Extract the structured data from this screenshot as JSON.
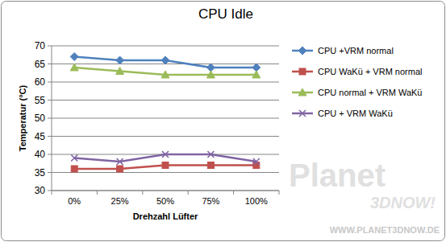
{
  "chart_data": {
    "type": "line",
    "title": "CPU Idle",
    "x_label": "Drehzahl Lüfter",
    "y_label": "Temperatur (°C)",
    "categories": [
      "0%",
      "25%",
      "50%",
      "75%",
      "100%"
    ],
    "series": [
      {
        "name": "CPU +VRM normal",
        "color": "#4f81bd",
        "marker": "diamond",
        "values": [
          67,
          66,
          66,
          64,
          64
        ]
      },
      {
        "name": "CPU WaKü + VRM normal",
        "color": "#c0504d",
        "marker": "square",
        "values": [
          36,
          36,
          37,
          37,
          37
        ]
      },
      {
        "name": "CPU normal + VRM WaKü",
        "color": "#9bbb59",
        "marker": "triangle",
        "values": [
          64,
          63,
          62,
          62,
          62
        ]
      },
      {
        "name": "CPU + VRM WaKü",
        "color": "#8064a2",
        "marker": "x",
        "values": [
          39,
          38,
          40,
          40,
          38
        ]
      }
    ],
    "ylim": [
      30,
      70
    ],
    "yticks": [
      30,
      35,
      40,
      45,
      50,
      55,
      60,
      65,
      70
    ],
    "grid": true,
    "legend": "right",
    "annotations": [
      "Planet",
      "3DNOW!",
      "WWW.PLANET3DNOW.DE"
    ]
  }
}
